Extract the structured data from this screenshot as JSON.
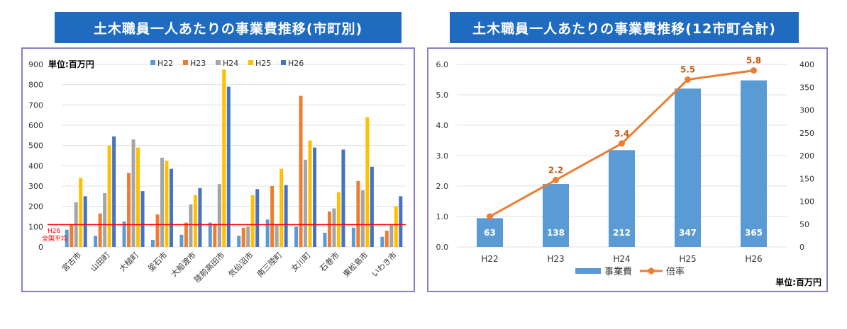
{
  "left_chart": {
    "title": "土木職員一人あたりの事業費推移(市町別)",
    "unit_label": "単位:百万円",
    "avg_label_line1": "H26",
    "avg_label_line2": "全国平均",
    "chart_data": {
      "type": "bar",
      "categories": [
        "宮古市",
        "山田町",
        "大槌町",
        "釜石市",
        "大船渡市",
        "陸前高田市",
        "気仙沼市",
        "南三陸町",
        "女川町",
        "石巻市",
        "東松島市",
        "いわき市"
      ],
      "series": [
        {
          "name": "H22",
          "color": "#5b9bd5",
          "values": [
            85,
            55,
            125,
            35,
            60,
            120,
            55,
            135,
            100,
            70,
            95,
            50
          ]
        },
        {
          "name": "H23",
          "color": "#ed7d31",
          "values": [
            110,
            165,
            365,
            160,
            120,
            115,
            95,
            300,
            745,
            175,
            325,
            80
          ]
        },
        {
          "name": "H24",
          "color": "#a5a5a5",
          "values": [
            220,
            265,
            530,
            440,
            210,
            310,
            100,
            110,
            430,
            190,
            280,
            110
          ]
        },
        {
          "name": "H25",
          "color": "#ffc000",
          "values": [
            340,
            500,
            490,
            425,
            255,
            875,
            255,
            385,
            525,
            270,
            640,
            200
          ]
        },
        {
          "name": "H26",
          "color": "#4472c4",
          "values": [
            250,
            545,
            275,
            385,
            290,
            790,
            285,
            305,
            490,
            480,
            395,
            250
          ]
        }
      ],
      "yticks": [
        0,
        100,
        200,
        300,
        400,
        500,
        600,
        700,
        800,
        900
      ],
      "ylim": [
        0,
        900
      ],
      "reference_line": {
        "value": 110,
        "color": "#ff0000"
      },
      "legend_position": "top"
    }
  },
  "right_chart": {
    "title": "土木職員一人あたりの事業費推移(12市町合計)",
    "unit_label": "単位:百万円",
    "chart_data": {
      "type": "bar",
      "categories": [
        "H22",
        "H23",
        "H24",
        "H25",
        "H26"
      ],
      "series": [
        {
          "name": "事業費",
          "axis": "right",
          "color": "#5b9bd5",
          "values": [
            63,
            138,
            212,
            347,
            365
          ],
          "labels": [
            "63",
            "138",
            "212",
            "347",
            "365"
          ]
        },
        {
          "name": "倍率",
          "axis": "left",
          "type": "line",
          "color": "#ed7d31",
          "values": [
            1.0,
            2.2,
            3.4,
            5.5,
            5.8
          ],
          "labels": [
            "",
            "2.2",
            "3.4",
            "5.5",
            "5.8"
          ]
        }
      ],
      "left_yticks": [
        "0.0",
        "1.0",
        "2.0",
        "3.0",
        "4.0",
        "5.0",
        "6.0"
      ],
      "left_ylim": [
        0,
        6
      ],
      "right_yticks": [
        "0",
        "50",
        "100",
        "150",
        "200",
        "250",
        "300",
        "350",
        "400"
      ],
      "right_ylim": [
        0,
        400
      ],
      "legend_position": "bottom"
    }
  }
}
